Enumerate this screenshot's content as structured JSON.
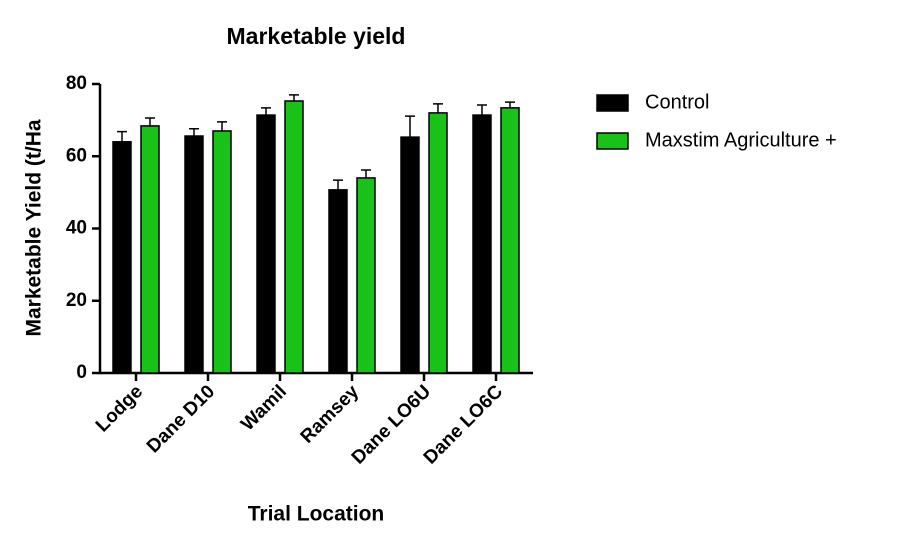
{
  "chart_data": {
    "type": "bar",
    "title": "Marketable yield",
    "x_label": "Trial Location",
    "y_label": "Marketable Yield (t/Ha",
    "categories": [
      "Lodge",
      "Dane D10",
      "Wamil",
      "Ramsey",
      "Dane LO6U",
      "Dane LO6C"
    ],
    "series": [
      {
        "name": "Control",
        "color": "#000000",
        "values": [
          64,
          65.6,
          71.4,
          50.7,
          65.3,
          71.4
        ],
        "errors": [
          2.8,
          2,
          2,
          2.7,
          5.8,
          2.8
        ]
      },
      {
        "name": "Maxstim Agriculture +",
        "color": "#19c119",
        "values": [
          68.4,
          67,
          75.3,
          54,
          72,
          73.4
        ],
        "errors": [
          2.2,
          2.5,
          1.7,
          2.2,
          2.5,
          1.6
        ]
      }
    ],
    "ylim": [
      0,
      80
    ],
    "yticks": [
      0,
      20,
      40,
      60,
      80
    ],
    "legend": "right"
  }
}
